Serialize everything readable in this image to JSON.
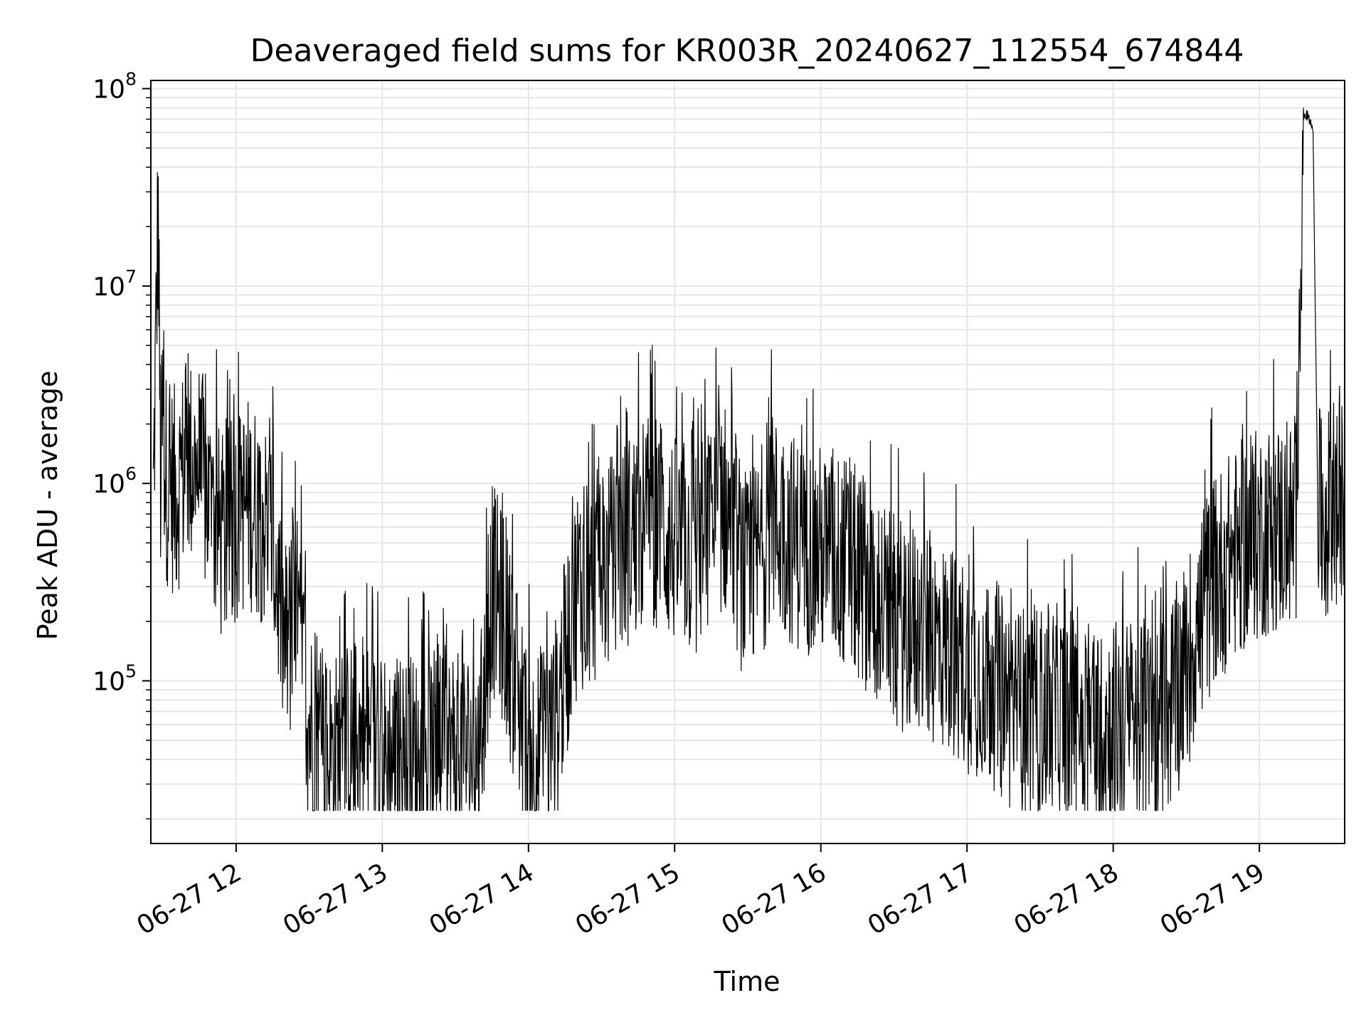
{
  "chart_data": {
    "type": "line",
    "title": "Deaveraged field sums for KR003R_20240627_112554_674844",
    "xlabel": "Time",
    "ylabel": "Peak ADU - average",
    "y_scale": "log",
    "ylim": [
      15000,
      110000000
    ],
    "xlim": [
      "2024-06-27 11:25",
      "2024-06-27 19:35"
    ],
    "grid": {
      "major": true,
      "minor_y": true,
      "color": "#e6e6e6"
    },
    "line_color": "#000000",
    "x_ticks": [
      {
        "value": "2024-06-27 12:00",
        "label": "06-27 12"
      },
      {
        "value": "2024-06-27 13:00",
        "label": "06-27 13"
      },
      {
        "value": "2024-06-27 14:00",
        "label": "06-27 14"
      },
      {
        "value": "2024-06-27 15:00",
        "label": "06-27 15"
      },
      {
        "value": "2024-06-27 16:00",
        "label": "06-27 16"
      },
      {
        "value": "2024-06-27 17:00",
        "label": "06-27 17"
      },
      {
        "value": "2024-06-27 18:00",
        "label": "06-27 18"
      },
      {
        "value": "2024-06-27 19:00",
        "label": "06-27 19"
      }
    ],
    "y_ticks": [
      {
        "value": 100000,
        "base": "10",
        "exp": "5"
      },
      {
        "value": 1000000,
        "base": "10",
        "exp": "6"
      },
      {
        "value": 10000000,
        "base": "10",
        "exp": "7"
      },
      {
        "value": 100000000,
        "base": "10",
        "exp": "8"
      }
    ],
    "series": [
      {
        "x": [
          "11:26",
          "11:28",
          "11:29",
          "11:30",
          "11:31",
          "11:35",
          "11:40",
          "11:45",
          "11:50",
          "11:55",
          "12:00",
          "12:05",
          "12:10",
          "12:15",
          "12:20",
          "12:25",
          "12:30",
          "12:35",
          "12:40",
          "12:45",
          "12:50",
          "13:00",
          "13:10",
          "13:20",
          "13:30",
          "13:40",
          "13:45",
          "13:50",
          "14:00",
          "14:10",
          "14:20",
          "14:30",
          "14:40",
          "14:50",
          "15:00",
          "15:10",
          "15:20",
          "15:30",
          "15:40",
          "15:50",
          "16:00",
          "16:10",
          "16:20",
          "16:30",
          "16:40",
          "16:50",
          "17:00",
          "17:10",
          "17:20",
          "17:30",
          "17:40",
          "17:50",
          "18:00",
          "18:10",
          "18:20",
          "18:30",
          "18:40",
          "18:50",
          "19:00",
          "19:05",
          "19:10",
          "19:15",
          "19:18",
          "19:20",
          "19:22",
          "19:24",
          "19:25",
          "19:30",
          "19:35"
        ],
        "y": [
          800000,
          25000000,
          1000000,
          2200000,
          1100000,
          900000,
          1300000,
          1200000,
          700000,
          500000,
          700000,
          800000,
          700000,
          500000,
          150000,
          200000,
          60000,
          45000,
          40000,
          45000,
          50000,
          40000,
          40000,
          40000,
          45000,
          42000,
          300000,
          200000,
          40000,
          50000,
          300000,
          350000,
          500000,
          700000,
          500000,
          450000,
          800000,
          300000,
          650000,
          500000,
          450000,
          400000,
          300000,
          200000,
          180000,
          150000,
          120000,
          100000,
          70000,
          70000,
          70000,
          60000,
          60000,
          60000,
          60000,
          120000,
          300000,
          450000,
          550000,
          600000,
          600000,
          600000,
          75000000,
          72000000,
          62000000,
          800000,
          650000,
          700000,
          800000
        ]
      }
    ],
    "annotations": []
  }
}
